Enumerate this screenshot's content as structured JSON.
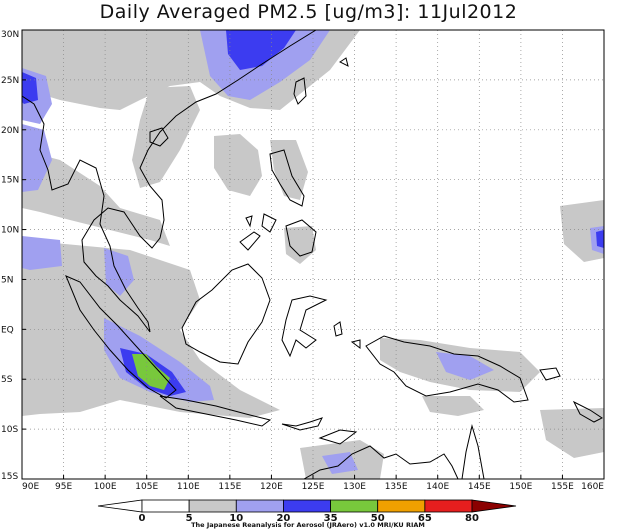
{
  "title": "Daily Averaged PM2.5 [ug/m3]: 11Jul2012",
  "credit": "The Japanese Reanalysis for Aerosol (JRAero) v1.0 MRI/KU RIAM",
  "map": {
    "lon_range": [
      90,
      160
    ],
    "lat_range": [
      -15,
      30
    ],
    "lon_ticks": [
      "90E",
      "95E",
      "100E",
      "105E",
      "110E",
      "115E",
      "120E",
      "125E",
      "130E",
      "135E",
      "140E",
      "145E",
      "150E",
      "155E",
      "160E"
    ],
    "lat_ticks": [
      "30N",
      "25N",
      "20N",
      "15N",
      "10N",
      "5N",
      "EQ",
      "5S",
      "10S",
      "15S"
    ],
    "gridlines": true
  },
  "colorbar": {
    "levels": [
      "0",
      "5",
      "10",
      "20",
      "35",
      "50",
      "65",
      "80"
    ],
    "colors": [
      "#ffffff",
      "#ffffff",
      "#c8c8c8",
      "#a0a0f0",
      "#3c3cf0",
      "#78c83c",
      "#f0a000",
      "#e61e1e",
      "#8b0000"
    ]
  }
}
